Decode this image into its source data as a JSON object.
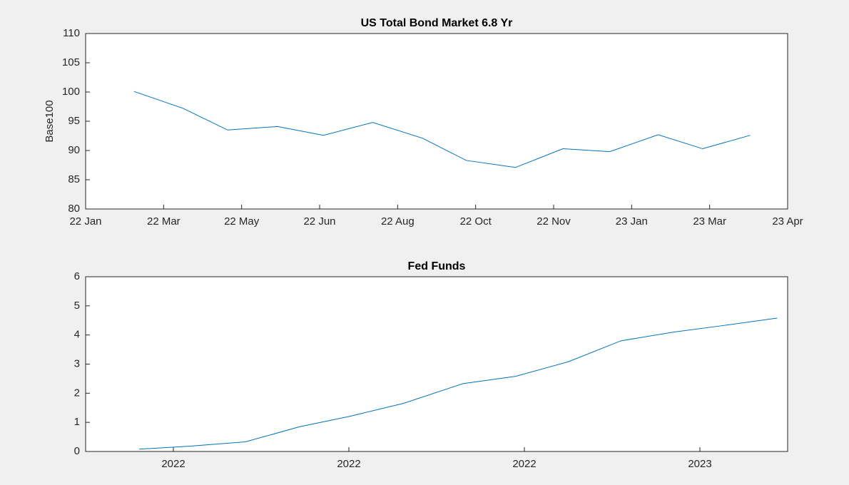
{
  "chart_data": [
    {
      "type": "line",
      "title": "US Total Bond Market 6.8 Yr",
      "ylabel": "Base100",
      "color": "#0072bd",
      "x": [
        0.62,
        1.25,
        1.82,
        2.46,
        3.05,
        3.68,
        4.32,
        4.88,
        5.51,
        6.12,
        6.72,
        7.34,
        7.91,
        8.52
      ],
      "values": [
        100.1,
        97.2,
        93.5,
        94.1,
        92.6,
        94.8,
        92.1,
        88.3,
        87.1,
        90.3,
        89.8,
        92.7,
        90.3,
        92.6
      ],
      "xlim": [
        0,
        9
      ],
      "xticks": [
        {
          "value": 0,
          "label": "22 Jan"
        },
        {
          "value": 1,
          "label": "22 Mar"
        },
        {
          "value": 2,
          "label": "22 May"
        },
        {
          "value": 3,
          "label": "22 Jun"
        },
        {
          "value": 4,
          "label": "22 Aug"
        },
        {
          "value": 5,
          "label": "22 Oct"
        },
        {
          "value": 6,
          "label": "22 Nov"
        },
        {
          "value": 7,
          "label": "23 Jan"
        },
        {
          "value": 8,
          "label": "23 Mar"
        },
        {
          "value": 9,
          "label": "23 Apr"
        }
      ],
      "ylim": [
        80,
        110
      ],
      "yticks": [
        80,
        85,
        90,
        95,
        100,
        105,
        110
      ]
    },
    {
      "type": "line",
      "title": "Fed Funds",
      "color": "#0072bd",
      "x": [
        -0.195,
        0.09,
        0.41,
        0.72,
        1.0,
        1.31,
        1.65,
        1.95,
        2.25,
        2.55,
        2.85,
        3.14,
        3.44
      ],
      "values": [
        0.08,
        0.18,
        0.33,
        0.85,
        1.2,
        1.65,
        2.33,
        2.58,
        3.08,
        3.8,
        4.1,
        4.33,
        4.58
      ],
      "xlim": [
        -0.5,
        3.5
      ],
      "xticks": [
        {
          "value": 0,
          "label": "2022"
        },
        {
          "value": 1,
          "label": "2022"
        },
        {
          "value": 2,
          "label": "2022"
        },
        {
          "value": 3,
          "label": "2023"
        }
      ],
      "ylim": [
        0,
        6
      ],
      "yticks": [
        0,
        1,
        2,
        3,
        4,
        5,
        6
      ]
    }
  ]
}
